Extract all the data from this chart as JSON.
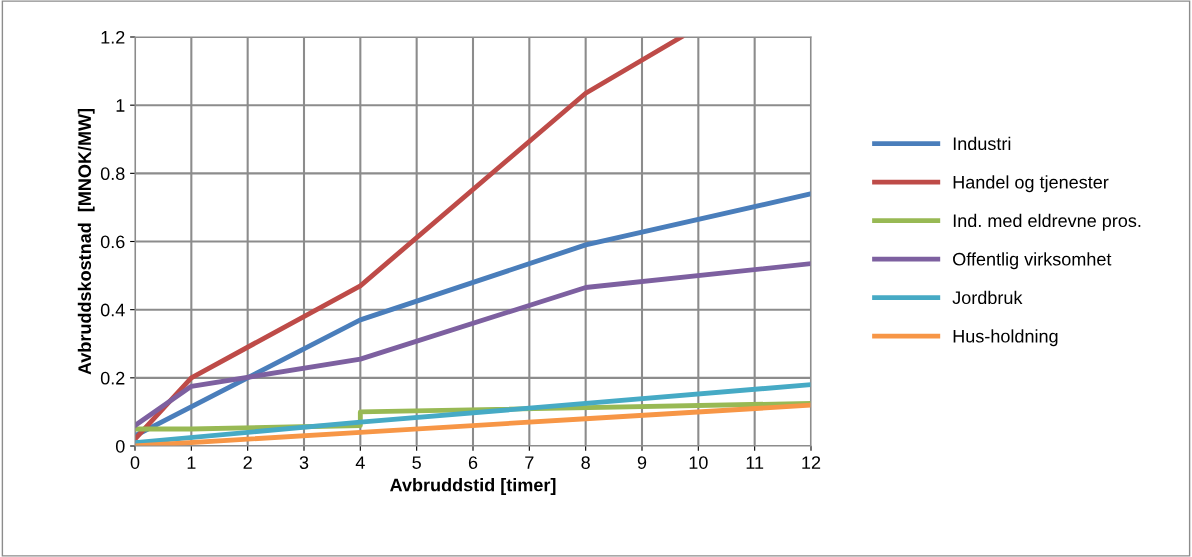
{
  "chart_data": {
    "type": "line",
    "xlabel": "Avbruddstid [timer]",
    "ylabel": "Avbruddskostnad  [MNOK/MW]",
    "xlim": [
      0,
      12
    ],
    "xticks": [
      0,
      1,
      2,
      3,
      4,
      5,
      6,
      7,
      8,
      9,
      10,
      11,
      12
    ],
    "ylim": [
      0,
      1.2
    ],
    "yticks": [
      0,
      0.2,
      0.4,
      0.6,
      0.8,
      1,
      1.2
    ],
    "grid": true,
    "legend": "right",
    "marker": "none",
    "line_style": "solid",
    "series": [
      {
        "name": "Industri",
        "color": "#4a7ebb",
        "x": [
          0,
          4,
          8,
          12
        ],
        "values": [
          0.03,
          0.37,
          0.59,
          0.74
        ]
      },
      {
        "name": "Handel og tjenester",
        "color": "#be4b48",
        "x": [
          0,
          1,
          4,
          8,
          9.7
        ],
        "values": [
          0.02,
          0.2,
          0.47,
          1.035,
          1.2
        ]
      },
      {
        "name": "Ind. med eldrevne pros.",
        "color": "#98b954",
        "x": [
          0,
          1,
          4,
          4,
          12
        ],
        "values": [
          0.05,
          0.05,
          0.06,
          0.1,
          0.125
        ]
      },
      {
        "name": "Offentlig virksomhet",
        "color": "#7d60a0",
        "x": [
          0,
          1,
          4,
          8,
          12
        ],
        "values": [
          0.06,
          0.175,
          0.255,
          0.465,
          0.535
        ]
      },
      {
        "name": "Jordbruk",
        "color": "#46aac5",
        "x": [
          0,
          4,
          8,
          12
        ],
        "values": [
          0.01,
          0.07,
          0.125,
          0.18
        ]
      },
      {
        "name": "Hus-holdning",
        "color": "#f79646",
        "x": [
          0,
          4,
          8,
          12
        ],
        "values": [
          0.0,
          0.04,
          0.08,
          0.12
        ]
      }
    ]
  }
}
